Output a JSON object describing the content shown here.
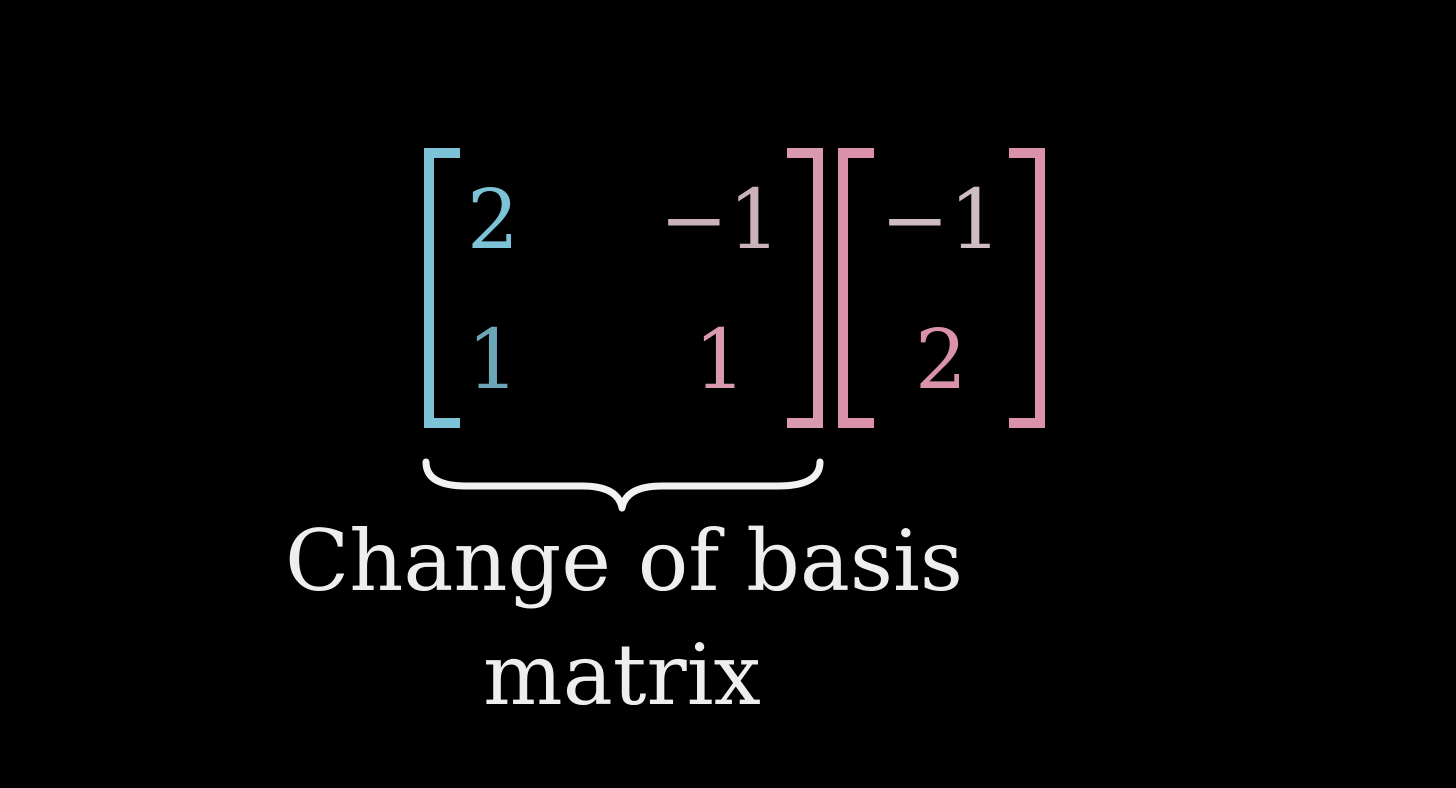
{
  "colors": {
    "background": "#000000",
    "basis_i": "#7cc3d8",
    "basis_j": "#d99aad",
    "vector": "#d992a9",
    "caption": "#eeeeee"
  },
  "matrix": {
    "r1c1": "2",
    "r1c2": "−1",
    "r2c1": "1",
    "r2c2": "1"
  },
  "vector": {
    "r1": "−1",
    "r2": "2"
  },
  "caption": {
    "line1": "Change of basis",
    "line2": "matrix"
  }
}
